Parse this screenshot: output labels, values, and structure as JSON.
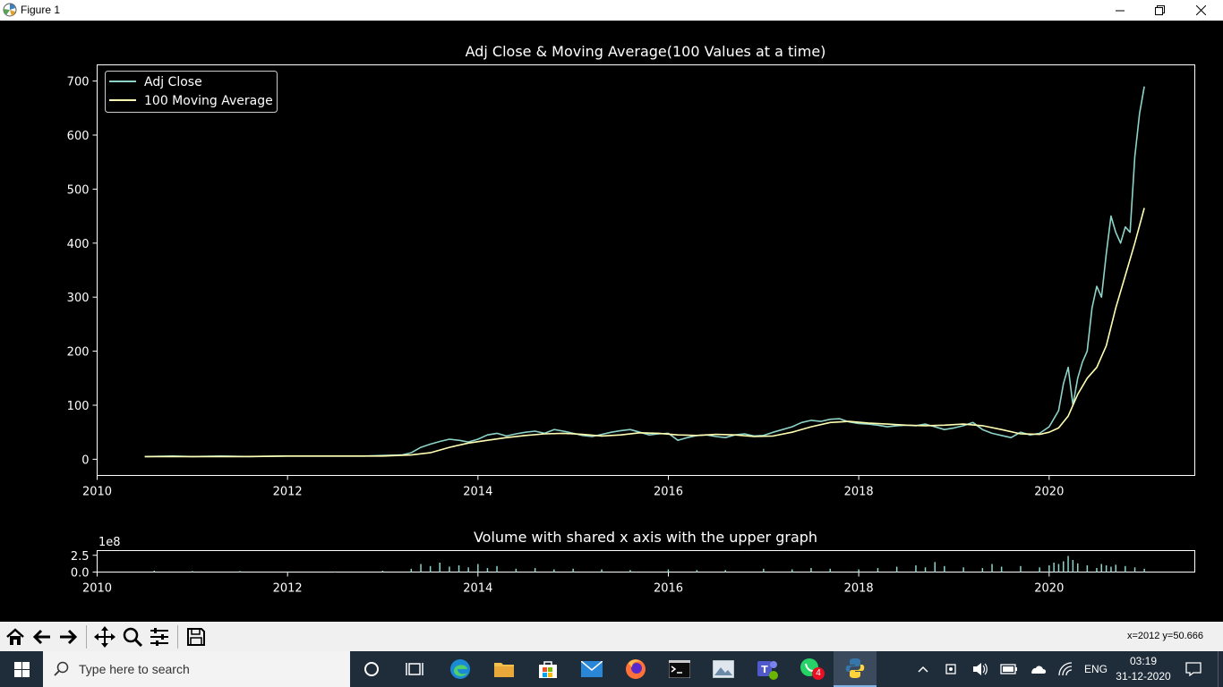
{
  "window": {
    "title": "Figure 1"
  },
  "chart_data": [
    {
      "type": "line",
      "title": "Adj Close & Moving Average(100 Values at a time)",
      "xlim": [
        2010,
        2021.53
      ],
      "ylim": [
        -30,
        730
      ],
      "xticks": [
        "2010",
        "2012",
        "2014",
        "2016",
        "2018",
        "2020"
      ],
      "yticks": [
        "0",
        "100",
        "200",
        "300",
        "400",
        "500",
        "600",
        "700"
      ],
      "legend_position": "top-left",
      "series": [
        {
          "name": "Adj Close",
          "color": "#8dd3c7",
          "x": [
            2010.5,
            2010.8,
            2011.0,
            2011.3,
            2011.6,
            2012.0,
            2012.4,
            2012.8,
            2013.0,
            2013.2,
            2013.3,
            2013.4,
            2013.5,
            2013.6,
            2013.7,
            2013.8,
            2013.9,
            2014.0,
            2014.1,
            2014.2,
            2014.3,
            2014.4,
            2014.5,
            2014.6,
            2014.7,
            2014.8,
            2014.9,
            2015.0,
            2015.1,
            2015.2,
            2015.3,
            2015.4,
            2015.5,
            2015.6,
            2015.7,
            2015.8,
            2015.9,
            2016.0,
            2016.1,
            2016.2,
            2016.3,
            2016.4,
            2016.5,
            2016.6,
            2016.7,
            2016.8,
            2016.9,
            2017.0,
            2017.1,
            2017.2,
            2017.3,
            2017.4,
            2017.5,
            2017.6,
            2017.7,
            2017.8,
            2017.9,
            2018.0,
            2018.1,
            2018.2,
            2018.3,
            2018.4,
            2018.5,
            2018.6,
            2018.7,
            2018.8,
            2018.9,
            2019.0,
            2019.1,
            2019.2,
            2019.3,
            2019.4,
            2019.5,
            2019.6,
            2019.7,
            2019.8,
            2019.9,
            2020.0,
            2020.05,
            2020.1,
            2020.15,
            2020.2,
            2020.25,
            2020.3,
            2020.35,
            2020.4,
            2020.45,
            2020.5,
            2020.55,
            2020.6,
            2020.65,
            2020.7,
            2020.75,
            2020.8,
            2020.85,
            2020.9,
            2020.95,
            2021.0
          ],
          "y": [
            5,
            6,
            5,
            6,
            5,
            6,
            6,
            6,
            7,
            8,
            12,
            22,
            28,
            33,
            37,
            35,
            32,
            37,
            45,
            48,
            43,
            47,
            50,
            52,
            48,
            55,
            52,
            48,
            44,
            42,
            46,
            50,
            53,
            55,
            50,
            45,
            47,
            48,
            35,
            40,
            44,
            45,
            42,
            40,
            45,
            47,
            43,
            44,
            50,
            55,
            60,
            68,
            72,
            70,
            74,
            75,
            69,
            66,
            65,
            63,
            60,
            62,
            63,
            62,
            65,
            60,
            55,
            58,
            62,
            68,
            55,
            48,
            44,
            40,
            50,
            45,
            48,
            60,
            75,
            90,
            140,
            170,
            100,
            150,
            180,
            200,
            280,
            320,
            300,
            380,
            450,
            420,
            400,
            430,
            420,
            560,
            640,
            690
          ]
        },
        {
          "name": "100 Moving Average",
          "color": "#ffffb3",
          "x": [
            2010.5,
            2011.0,
            2011.5,
            2012.0,
            2012.5,
            2013.0,
            2013.3,
            2013.5,
            2013.7,
            2013.9,
            2014.1,
            2014.3,
            2014.5,
            2014.7,
            2014.9,
            2015.1,
            2015.3,
            2015.5,
            2015.7,
            2015.9,
            2016.1,
            2016.3,
            2016.5,
            2016.7,
            2016.9,
            2017.1,
            2017.3,
            2017.5,
            2017.7,
            2017.9,
            2018.1,
            2018.3,
            2018.5,
            2018.7,
            2018.9,
            2019.1,
            2019.3,
            2019.5,
            2019.7,
            2019.9,
            2020.0,
            2020.1,
            2020.2,
            2020.3,
            2020.4,
            2020.5,
            2020.6,
            2020.7,
            2020.8,
            2020.9,
            2021.0
          ],
          "y": [
            5,
            5,
            5,
            6,
            6,
            6,
            8,
            12,
            22,
            30,
            35,
            40,
            44,
            47,
            48,
            46,
            43,
            45,
            49,
            48,
            45,
            44,
            46,
            45,
            42,
            43,
            50,
            60,
            68,
            70,
            67,
            65,
            63,
            62,
            63,
            65,
            62,
            55,
            47,
            46,
            50,
            58,
            80,
            120,
            150,
            170,
            210,
            280,
            340,
            400,
            465
          ]
        }
      ]
    },
    {
      "type": "bar",
      "title": "Volume with shared x axis with the upper graph",
      "scale_label": "1e8",
      "xlim": [
        2010,
        2021.53
      ],
      "ylim": [
        0,
        3.2
      ],
      "xticks": [
        "2010",
        "2012",
        "2014",
        "2016",
        "2018",
        "2020"
      ],
      "yticks": [
        "0.0",
        "2.5"
      ],
      "color": "#8dd3c7",
      "series": [
        {
          "x": [
            2010.6,
            2011.0,
            2011.5,
            2012.0,
            2012.5,
            2013.0,
            2013.3,
            2013.4,
            2013.5,
            2013.6,
            2013.7,
            2013.8,
            2013.9,
            2014.0,
            2014.1,
            2014.2,
            2014.4,
            2014.6,
            2014.8,
            2015.0,
            2015.3,
            2015.6,
            2016.0,
            2016.3,
            2016.6,
            2017.0,
            2017.3,
            2017.5,
            2017.7,
            2018.0,
            2018.2,
            2018.4,
            2018.6,
            2018.7,
            2018.8,
            2018.9,
            2019.1,
            2019.3,
            2019.4,
            2019.5,
            2019.7,
            2019.9,
            2020.0,
            2020.05,
            2020.1,
            2020.15,
            2020.2,
            2020.25,
            2020.3,
            2020.4,
            2020.5,
            2020.55,
            2020.6,
            2020.65,
            2020.7,
            2020.8,
            2020.9,
            2021.0
          ],
          "values": [
            0.2,
            0.15,
            0.15,
            0.1,
            0.1,
            0.2,
            0.5,
            1.2,
            0.9,
            1.4,
            0.8,
            1.0,
            0.7,
            1.2,
            0.6,
            0.9,
            0.5,
            0.6,
            0.4,
            0.5,
            0.4,
            0.3,
            0.4,
            0.3,
            0.3,
            0.5,
            0.4,
            0.6,
            0.5,
            0.4,
            0.6,
            0.8,
            1.0,
            0.7,
            1.5,
            0.9,
            0.7,
            0.6,
            1.2,
            0.8,
            0.9,
            0.7,
            1.0,
            1.4,
            1.2,
            1.6,
            2.4,
            1.8,
            1.3,
            1.0,
            0.6,
            1.2,
            1.0,
            0.8,
            1.1,
            0.9,
            0.7,
            0.5
          ]
        }
      ]
    }
  ],
  "toolbar": {
    "buttons": [
      "home-icon",
      "back-icon",
      "forward-icon",
      "pan-icon",
      "zoom-icon",
      "configure-icon",
      "save-icon"
    ],
    "coords_text": "x=2012 y=50.666"
  },
  "taskbar": {
    "search_placeholder": "Type here to search",
    "apps": [
      "cortana-icon",
      "task-view-icon",
      "edge-icon",
      "file-explorer-icon",
      "store-icon",
      "mail-icon",
      "firefox-icon",
      "terminal-icon",
      "photos-icon",
      "teams-icon",
      "whatsapp-icon",
      "python-icon"
    ],
    "whatsapp_badge": "4",
    "language": "ENG",
    "time": "03:19",
    "date": "31-12-2020"
  }
}
